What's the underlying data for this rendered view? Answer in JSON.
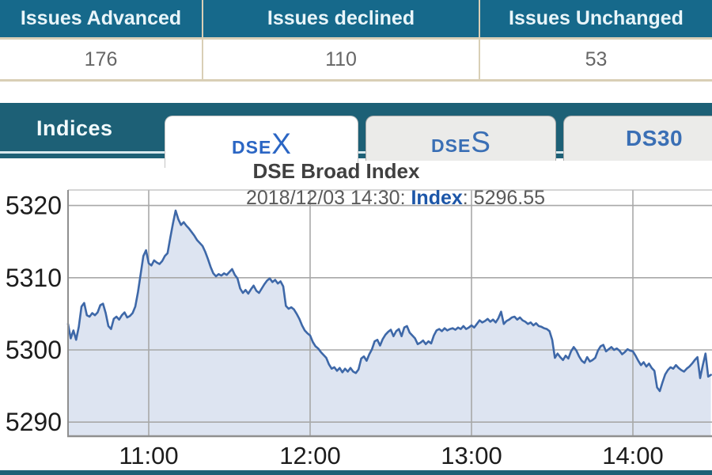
{
  "issues_table": {
    "columns": [
      {
        "label": "Issues Advanced",
        "value": "176"
      },
      {
        "label": "Issues declined",
        "value": "110"
      },
      {
        "label": "Issues Unchanged",
        "value": "53"
      }
    ]
  },
  "tabs": {
    "section_label": "Indices",
    "items": [
      {
        "id": "dsex",
        "prefix": "DSE",
        "suffix": "X",
        "active": true
      },
      {
        "id": "dses",
        "prefix": "DSE",
        "suffix": "S",
        "active": false
      },
      {
        "id": "ds30",
        "prefix": "DS30",
        "suffix": "",
        "active": false
      }
    ]
  },
  "chart_header": {
    "title": "DSE Broad Index",
    "subtitle_datetime": "2018/12/03 14:30: ",
    "subtitle_label": "Index",
    "subtitle_value": ": 5296.55"
  },
  "colors": {
    "teal_header": "#16698b",
    "teal_bar": "#1d6076",
    "line": "#3e68a8",
    "fill": "#dde4f1",
    "grid": "#a8a8a8",
    "axis": "#8f8f8f",
    "frame_top": "#bcbcbc",
    "tick_text": "#1c1c1c",
    "tab_blue_active": "#2b66c4",
    "tab_blue": "#3a6fb5",
    "index_blue": "#1c56a8"
  },
  "chart_data": {
    "type": "area",
    "title": "DSE Broad Index",
    "series_name": "Index",
    "x_start_time": "10:30",
    "x_end_time": "14:30",
    "x_tick_labels": [
      "11:00",
      "12:00",
      "13:00",
      "14:00"
    ],
    "x_tick_minutes_from_start": [
      30,
      90,
      150,
      210
    ],
    "y_ticks": [
      5290,
      5300,
      5310,
      5320
    ],
    "ylim": [
      5287,
      5322
    ],
    "grid": true,
    "legend": false,
    "last_point": {
      "date": "2018/12/03",
      "time": "14:30",
      "value": 5296.55
    },
    "points": [
      [
        0,
        5303.6
      ],
      [
        1,
        5301.6
      ],
      [
        2,
        5302.7
      ],
      [
        3,
        5301.4
      ],
      [
        4,
        5303.2
      ],
      [
        5,
        5306.0
      ],
      [
        6,
        5306.5
      ],
      [
        7,
        5304.8
      ],
      [
        8,
        5304.6
      ],
      [
        9,
        5305.1
      ],
      [
        10,
        5304.8
      ],
      [
        11,
        5305.2
      ],
      [
        12,
        5306.2
      ],
      [
        13,
        5306.4
      ],
      [
        14,
        5305.1
      ],
      [
        15,
        5303.3
      ],
      [
        16,
        5302.9
      ],
      [
        17,
        5304.3
      ],
      [
        18,
        5304.6
      ],
      [
        19,
        5304.2
      ],
      [
        20,
        5304.8
      ],
      [
        21,
        5305.2
      ],
      [
        22,
        5304.5
      ],
      [
        23,
        5304.7
      ],
      [
        24,
        5305.1
      ],
      [
        25,
        5306.0
      ],
      [
        26,
        5308.0
      ],
      [
        27,
        5310.5
      ],
      [
        28,
        5313.0
      ],
      [
        29,
        5313.8
      ],
      [
        30,
        5312.0
      ],
      [
        31,
        5311.7
      ],
      [
        32,
        5312.4
      ],
      [
        33,
        5312.1
      ],
      [
        34,
        5311.9
      ],
      [
        35,
        5312.3
      ],
      [
        36,
        5313.0
      ],
      [
        37,
        5313.4
      ],
      [
        38,
        5315.5
      ],
      [
        39,
        5317.5
      ],
      [
        40,
        5319.3
      ],
      [
        41,
        5318.1
      ],
      [
        42,
        5317.3
      ],
      [
        43,
        5317.7
      ],
      [
        44,
        5317.2
      ],
      [
        45,
        5316.8
      ],
      [
        46,
        5316.3
      ],
      [
        47,
        5315.8
      ],
      [
        48,
        5315.2
      ],
      [
        49,
        5314.8
      ],
      [
        50,
        5314.4
      ],
      [
        51,
        5313.6
      ],
      [
        52,
        5312.6
      ],
      [
        53,
        5311.5
      ],
      [
        54,
        5310.6
      ],
      [
        55,
        5310.2
      ],
      [
        56,
        5310.5
      ],
      [
        57,
        5310.3
      ],
      [
        58,
        5310.6
      ],
      [
        59,
        5310.4
      ],
      [
        60,
        5310.8
      ],
      [
        61,
        5311.2
      ],
      [
        62,
        5310.4
      ],
      [
        63,
        5309.9
      ],
      [
        64,
        5308.5
      ],
      [
        65,
        5307.9
      ],
      [
        66,
        5308.3
      ],
      [
        67,
        5307.8
      ],
      [
        68,
        5308.4
      ],
      [
        69,
        5308.9
      ],
      [
        70,
        5308.2
      ],
      [
        71,
        5307.9
      ],
      [
        72,
        5308.5
      ],
      [
        73,
        5309.1
      ],
      [
        74,
        5309.6
      ],
      [
        75,
        5309.9
      ],
      [
        76,
        5309.4
      ],
      [
        77,
        5309.7
      ],
      [
        78,
        5309.2
      ],
      [
        79,
        5309.5
      ],
      [
        80,
        5308.8
      ],
      [
        81,
        5306.1
      ],
      [
        82,
        5305.7
      ],
      [
        83,
        5305.9
      ],
      [
        84,
        5305.6
      ],
      [
        85,
        5305.0
      ],
      [
        86,
        5304.3
      ],
      [
        87,
        5303.4
      ],
      [
        88,
        5302.7
      ],
      [
        89,
        5302.3
      ],
      [
        90,
        5302.0
      ],
      [
        91,
        5301.1
      ],
      [
        92,
        5300.5
      ],
      [
        93,
        5300.2
      ],
      [
        94,
        5299.7
      ],
      [
        95,
        5299.3
      ],
      [
        96,
        5298.9
      ],
      [
        97,
        5298.0
      ],
      [
        98,
        5297.4
      ],
      [
        99,
        5297.6
      ],
      [
        100,
        5297.1
      ],
      [
        101,
        5297.5
      ],
      [
        102,
        5296.9
      ],
      [
        103,
        5297.4
      ],
      [
        104,
        5297.0
      ],
      [
        105,
        5297.5
      ],
      [
        106,
        5297.0
      ],
      [
        107,
        5296.8
      ],
      [
        108,
        5297.3
      ],
      [
        109,
        5298.8
      ],
      [
        110,
        5299.1
      ],
      [
        111,
        5298.5
      ],
      [
        112,
        5299.4
      ],
      [
        113,
        5300.1
      ],
      [
        114,
        5301.2
      ],
      [
        115,
        5301.4
      ],
      [
        116,
        5300.6
      ],
      [
        117,
        5301.5
      ],
      [
        118,
        5302.1
      ],
      [
        119,
        5302.5
      ],
      [
        120,
        5302.8
      ],
      [
        121,
        5301.9
      ],
      [
        122,
        5302.6
      ],
      [
        123,
        5302.9
      ],
      [
        124,
        5301.9
      ],
      [
        125,
        5303.1
      ],
      [
        126,
        5303.3
      ],
      [
        127,
        5302.4
      ],
      [
        128,
        5302.0
      ],
      [
        129,
        5301.6
      ],
      [
        130,
        5300.8
      ],
      [
        131,
        5301.0
      ],
      [
        132,
        5301.3
      ],
      [
        133,
        5300.8
      ],
      [
        134,
        5301.2
      ],
      [
        135,
        5300.9
      ],
      [
        136,
        5302.0
      ],
      [
        137,
        5302.7
      ],
      [
        138,
        5302.9
      ],
      [
        139,
        5302.6
      ],
      [
        140,
        5303.0
      ],
      [
        141,
        5302.7
      ],
      [
        142,
        5302.9
      ],
      [
        143,
        5303.0
      ],
      [
        144,
        5302.8
      ],
      [
        145,
        5303.1
      ],
      [
        146,
        5302.9
      ],
      [
        147,
        5303.3
      ],
      [
        148,
        5302.9
      ],
      [
        149,
        5303.1
      ],
      [
        150,
        5303.4
      ],
      [
        151,
        5303.1
      ],
      [
        152,
        5303.6
      ],
      [
        153,
        5304.1
      ],
      [
        154,
        5303.8
      ],
      [
        155,
        5304.0
      ],
      [
        156,
        5304.3
      ],
      [
        157,
        5303.9
      ],
      [
        158,
        5304.2
      ],
      [
        159,
        5303.8
      ],
      [
        160,
        5304.4
      ],
      [
        161,
        5305.3
      ],
      [
        162,
        5303.6
      ],
      [
        163,
        5304.0
      ],
      [
        164,
        5304.2
      ],
      [
        165,
        5304.5
      ],
      [
        166,
        5304.6
      ],
      [
        167,
        5304.2
      ],
      [
        168,
        5304.5
      ],
      [
        169,
        5304.1
      ],
      [
        170,
        5303.9
      ],
      [
        171,
        5303.6
      ],
      [
        172,
        5303.8
      ],
      [
        173,
        5303.4
      ],
      [
        174,
        5303.7
      ],
      [
        175,
        5303.3
      ],
      [
        176,
        5303.2
      ],
      [
        177,
        5303.0
      ],
      [
        178,
        5302.9
      ],
      [
        179,
        5302.6
      ],
      [
        180,
        5301.4
      ],
      [
        181,
        5298.9
      ],
      [
        182,
        5299.5
      ],
      [
        183,
        5299.0
      ],
      [
        184,
        5298.6
      ],
      [
        185,
        5299.2
      ],
      [
        186,
        5298.8
      ],
      [
        187,
        5299.8
      ],
      [
        188,
        5300.4
      ],
      [
        189,
        5299.9
      ],
      [
        190,
        5299.1
      ],
      [
        191,
        5298.5
      ],
      [
        192,
        5298.2
      ],
      [
        193,
        5299.0
      ],
      [
        194,
        5298.4
      ],
      [
        195,
        5298.6
      ],
      [
        196,
        5298.9
      ],
      [
        197,
        5299.9
      ],
      [
        198,
        5300.5
      ],
      [
        199,
        5300.7
      ],
      [
        200,
        5299.8
      ],
      [
        201,
        5300.1
      ],
      [
        202,
        5300.4
      ],
      [
        203,
        5300.0
      ],
      [
        204,
        5300.2
      ],
      [
        205,
        5299.9
      ],
      [
        206,
        5299.4
      ],
      [
        207,
        5299.7
      ],
      [
        208,
        5300.1
      ],
      [
        209,
        5299.9
      ],
      [
        210,
        5299.8
      ],
      [
        211,
        5299.2
      ],
      [
        212,
        5298.5
      ],
      [
        213,
        5297.9
      ],
      [
        214,
        5298.3
      ],
      [
        215,
        5297.7
      ],
      [
        216,
        5298.1
      ],
      [
        217,
        5297.5
      ],
      [
        218,
        5297.1
      ],
      [
        219,
        5294.8
      ],
      [
        220,
        5294.3
      ],
      [
        221,
        5295.5
      ],
      [
        222,
        5296.6
      ],
      [
        223,
        5297.2
      ],
      [
        224,
        5297.6
      ],
      [
        225,
        5297.4
      ],
      [
        226,
        5297.9
      ],
      [
        227,
        5297.5
      ],
      [
        228,
        5297.2
      ],
      [
        229,
        5297.0
      ],
      [
        230,
        5297.4
      ],
      [
        231,
        5297.7
      ],
      [
        232,
        5298.1
      ],
      [
        233,
        5298.6
      ],
      [
        234,
        5299.0
      ],
      [
        235,
        5296.1
      ],
      [
        236,
        5297.9
      ],
      [
        237,
        5299.5
      ],
      [
        238,
        5296.3
      ],
      [
        239,
        5296.55
      ]
    ]
  }
}
